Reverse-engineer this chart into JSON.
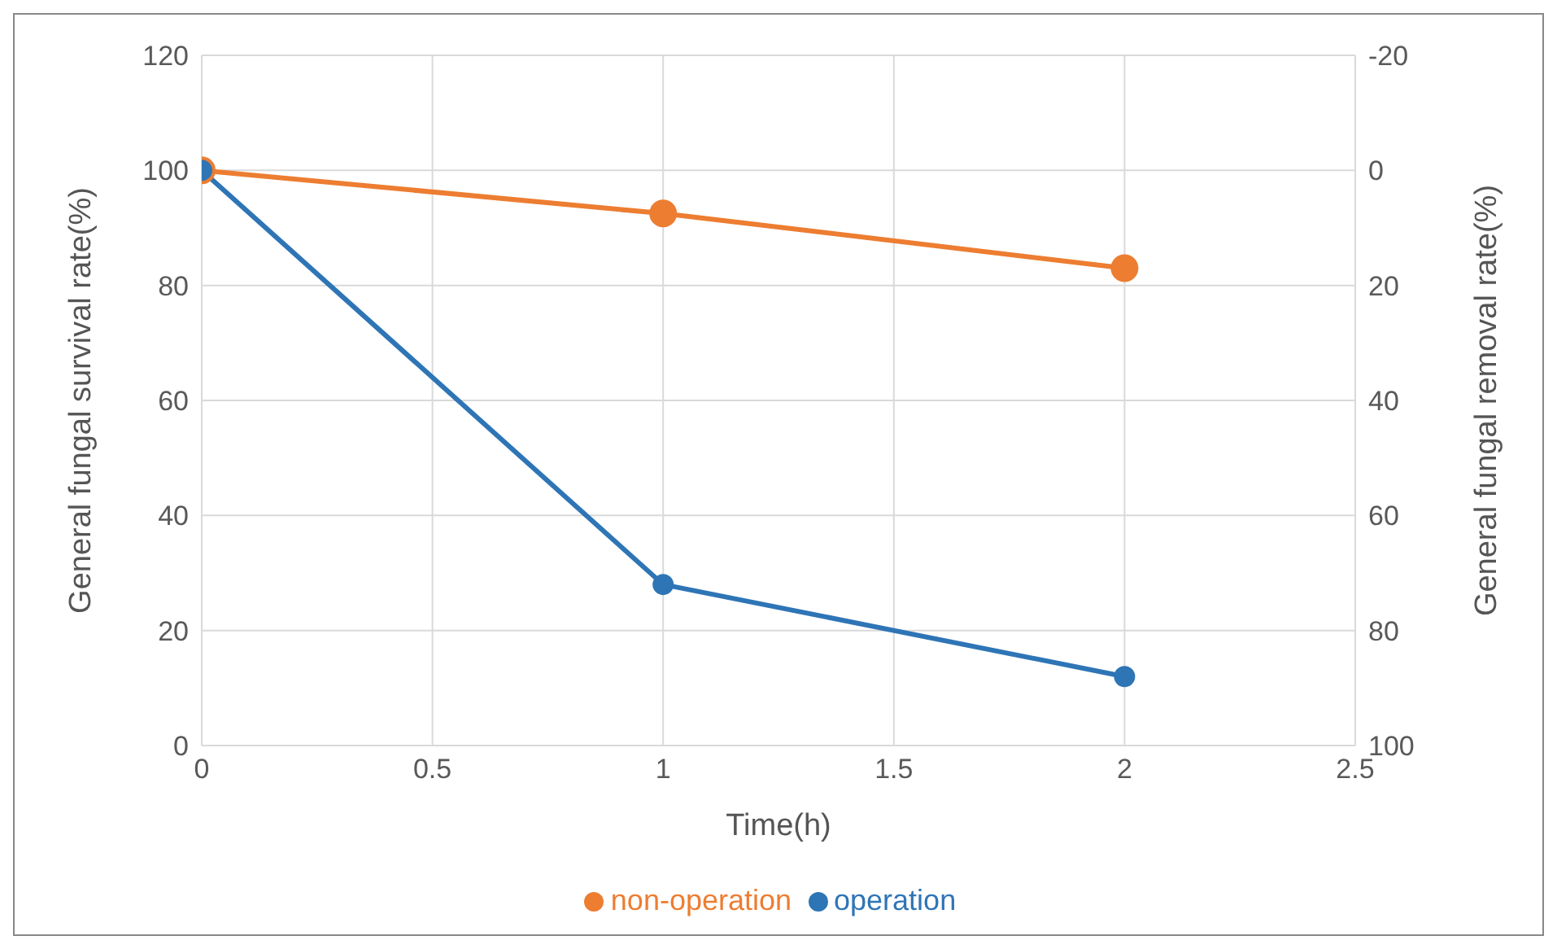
{
  "chart_data": {
    "type": "line",
    "xlabel": "Time(h)",
    "ylabel": "General fungal survival rate(%)",
    "y2label": "General fungal removal rate(%)",
    "x": [
      0,
      1,
      2
    ],
    "series": [
      {
        "name": "non-operation",
        "color": "#ed7d31",
        "values": [
          100,
          92.5,
          83
        ]
      },
      {
        "name": "operation",
        "color": "#2e75b6",
        "values": [
          100,
          28,
          12
        ]
      }
    ],
    "xlim": [
      0,
      2.5
    ],
    "xticks": [
      0,
      0.5,
      1,
      1.5,
      2,
      2.5
    ],
    "ylim": [
      0,
      120
    ],
    "yticks": [
      0,
      20,
      40,
      60,
      80,
      100,
      120
    ],
    "y2lim": [
      100,
      -20
    ],
    "y2ticks": [
      -20,
      0,
      20,
      40,
      60,
      80,
      100
    ],
    "grid": true,
    "legend": "bottom",
    "marker": "circle",
    "line_style": "solid"
  }
}
